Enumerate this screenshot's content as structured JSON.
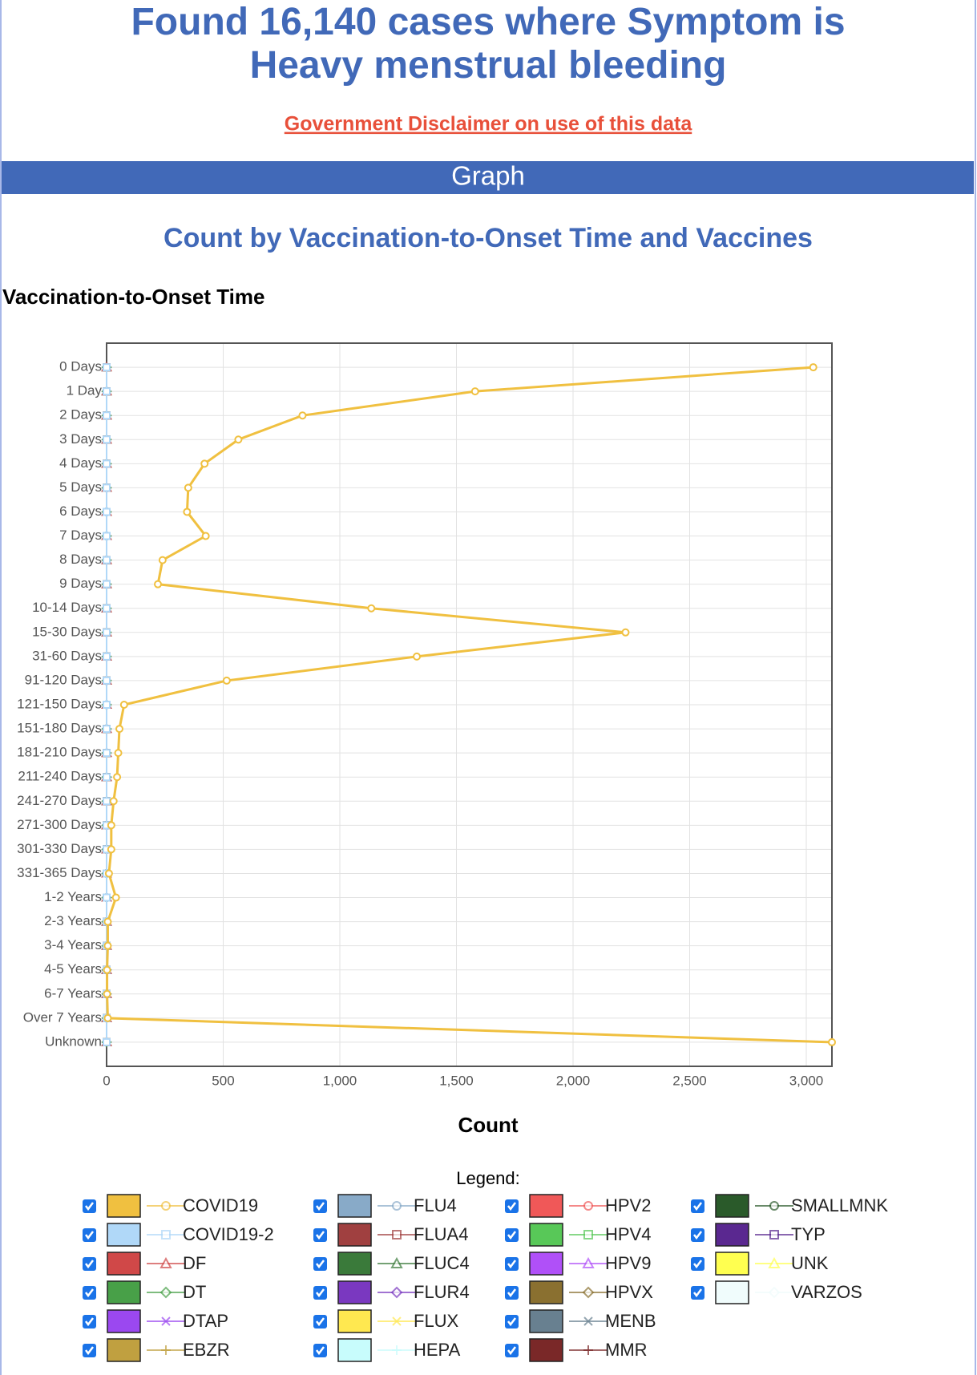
{
  "page": {
    "title": "Found 16,140 cases where Symptom is Heavy menstrual bleeding",
    "disclaimer": "Government Disclaimer on use of this data",
    "section": "Graph"
  },
  "chart_data": {
    "type": "line",
    "orientation": "horizontal",
    "title": "Count by Vaccination-to-Onset Time and Vaccines",
    "y_label": "Vaccination-to-Onset Time",
    "x_label": "Count",
    "legend_title": "Legend:",
    "categories": [
      "0 Days",
      "1 Day",
      "2 Days",
      "3 Days",
      "4 Days",
      "5 Days",
      "6 Days",
      "7 Days",
      "8 Days",
      "9 Days",
      "10-14 Days",
      "15-30 Days",
      "31-60 Days",
      "91-120 Days",
      "121-150 Days",
      "151-180 Days",
      "181-210 Days",
      "211-240 Days",
      "241-270 Days",
      "271-300 Days",
      "301-330 Days",
      "331-365 Days",
      "1-2 Years",
      "2-3 Years",
      "3-4 Years",
      "4-5 Years",
      "6-7 Years",
      "Over 7 Years",
      "Unknown"
    ],
    "xlim": [
      0,
      3110
    ],
    "xticks": [
      0,
      500,
      {
        "value": 1000,
        "label": "1,000"
      },
      {
        "value": 1500,
        "label": "1,500"
      },
      {
        "value": 2000,
        "label": "2,000"
      },
      {
        "value": 2500,
        "label": "2,500"
      },
      {
        "value": 3000,
        "label": "3,000"
      }
    ],
    "grid": true,
    "series": [
      {
        "name": "COVID19",
        "color": "#f0c040",
        "marker": "circle",
        "values": [
          3030,
          1580,
          840,
          565,
          420,
          350,
          345,
          425,
          240,
          220,
          1135,
          2225,
          1330,
          515,
          75,
          55,
          50,
          45,
          30,
          20,
          20,
          10,
          40,
          5,
          5,
          2,
          2,
          5,
          3110
        ]
      },
      {
        "name": "COVID19-2",
        "color": "#b0d8f8",
        "marker": "square",
        "values": [
          0,
          0,
          0,
          0,
          0,
          0,
          0,
          0,
          0,
          0,
          0,
          0,
          0,
          0,
          0,
          0,
          0,
          0,
          0,
          0,
          0,
          0,
          0,
          0,
          0,
          0,
          0,
          0,
          0
        ]
      },
      {
        "name": "DF",
        "color": "#d04848",
        "marker": "triangle",
        "values": [
          0,
          0,
          0,
          0,
          0,
          0,
          0,
          0,
          0,
          0,
          0,
          0,
          0,
          0,
          0,
          0,
          0,
          0,
          0,
          0,
          0,
          0,
          0,
          0,
          0,
          0,
          0,
          0,
          0
        ]
      },
      {
        "name": "DT",
        "color": "#48a048",
        "marker": "diamond",
        "values": [
          0,
          0,
          0,
          0,
          0,
          0,
          0,
          0,
          0,
          0,
          0,
          0,
          0,
          0,
          0,
          0,
          0,
          0,
          0,
          0,
          0,
          0,
          0,
          0,
          0,
          0,
          0,
          0,
          0
        ]
      },
      {
        "name": "DTAP",
        "color": "#9b48f0",
        "marker": "cross",
        "values": [
          0,
          0,
          0,
          0,
          0,
          0,
          0,
          0,
          0,
          0,
          0,
          0,
          0,
          0,
          0,
          0,
          0,
          0,
          0,
          0,
          0,
          0,
          0,
          0,
          0,
          0,
          0,
          0,
          0
        ]
      },
      {
        "name": "EBZR",
        "color": "#c0a040",
        "marker": "plus",
        "values": [
          0,
          0,
          0,
          0,
          0,
          0,
          0,
          0,
          0,
          0,
          0,
          0,
          0,
          0,
          0,
          0,
          0,
          0,
          0,
          0,
          0,
          0,
          0,
          0,
          0,
          0,
          0,
          0,
          0
        ]
      },
      {
        "name": "FLU4",
        "color": "#88aac8",
        "marker": "circle",
        "values": [
          0,
          0,
          0,
          0,
          0,
          0,
          0,
          0,
          0,
          0,
          0,
          0,
          0,
          0,
          0,
          0,
          0,
          0,
          0,
          0,
          0,
          0,
          0,
          0,
          0,
          0,
          0,
          0,
          0
        ]
      },
      {
        "name": "FLUA4",
        "color": "#a04040",
        "marker": "square",
        "values": [
          0,
          0,
          0,
          0,
          0,
          0,
          0,
          0,
          0,
          0,
          0,
          0,
          0,
          0,
          0,
          0,
          0,
          0,
          0,
          0,
          0,
          0,
          0,
          0,
          0,
          0,
          0,
          0,
          0
        ]
      },
      {
        "name": "FLUC4",
        "color": "#3a7a3a",
        "marker": "triangle",
        "values": [
          0,
          0,
          0,
          0,
          0,
          0,
          0,
          0,
          0,
          0,
          0,
          0,
          0,
          0,
          0,
          0,
          0,
          0,
          0,
          0,
          0,
          0,
          0,
          0,
          0,
          0,
          0,
          0,
          0
        ]
      },
      {
        "name": "FLUR4",
        "color": "#7a38c0",
        "marker": "diamond",
        "values": [
          0,
          0,
          0,
          0,
          0,
          0,
          0,
          0,
          0,
          0,
          0,
          0,
          0,
          0,
          0,
          0,
          0,
          0,
          0,
          0,
          0,
          0,
          0,
          0,
          0,
          0,
          0,
          0,
          0
        ]
      },
      {
        "name": "FLUX",
        "color": "#ffe850",
        "marker": "cross",
        "values": [
          0,
          0,
          0,
          0,
          0,
          0,
          0,
          0,
          0,
          0,
          0,
          0,
          0,
          0,
          0,
          0,
          0,
          0,
          0,
          0,
          0,
          0,
          0,
          0,
          0,
          0,
          0,
          0,
          0
        ]
      },
      {
        "name": "HEPA",
        "color": "#c8fcfc",
        "marker": "plus",
        "values": [
          0,
          0,
          0,
          0,
          0,
          0,
          0,
          0,
          0,
          0,
          0,
          0,
          0,
          0,
          0,
          0,
          0,
          0,
          0,
          0,
          0,
          0,
          0,
          0,
          0,
          0,
          0,
          0,
          0
        ]
      },
      {
        "name": "HPV2",
        "color": "#f05858",
        "marker": "circle",
        "values": [
          0,
          0,
          0,
          0,
          0,
          0,
          0,
          0,
          0,
          0,
          0,
          0,
          0,
          0,
          0,
          0,
          0,
          0,
          0,
          0,
          0,
          0,
          0,
          0,
          0,
          0,
          0,
          0,
          0
        ]
      },
      {
        "name": "HPV4",
        "color": "#58c858",
        "marker": "square",
        "values": [
          0,
          0,
          0,
          0,
          0,
          0,
          0,
          0,
          0,
          0,
          0,
          0,
          0,
          0,
          0,
          0,
          0,
          0,
          0,
          0,
          0,
          0,
          0,
          0,
          0,
          0,
          0,
          0,
          0
        ]
      },
      {
        "name": "HPV9",
        "color": "#b050f8",
        "marker": "triangle",
        "values": [
          0,
          0,
          0,
          0,
          0,
          0,
          0,
          0,
          0,
          0,
          0,
          0,
          0,
          0,
          0,
          0,
          0,
          0,
          0,
          0,
          0,
          0,
          0,
          0,
          0,
          0,
          0,
          0,
          0
        ]
      },
      {
        "name": "HPVX",
        "color": "#8a7030",
        "marker": "diamond",
        "values": [
          0,
          0,
          0,
          0,
          0,
          0,
          0,
          0,
          0,
          0,
          0,
          0,
          0,
          0,
          0,
          0,
          0,
          0,
          0,
          0,
          0,
          0,
          0,
          0,
          0,
          0,
          0,
          0,
          0
        ]
      },
      {
        "name": "MENB",
        "color": "#688090",
        "marker": "cross",
        "values": [
          0,
          0,
          0,
          0,
          0,
          0,
          0,
          0,
          0,
          0,
          0,
          0,
          0,
          0,
          0,
          0,
          0,
          0,
          0,
          0,
          0,
          0,
          0,
          0,
          0,
          0,
          0,
          0,
          0
        ]
      },
      {
        "name": "MMR",
        "color": "#7a2828",
        "marker": "plus",
        "values": [
          0,
          0,
          0,
          0,
          0,
          0,
          0,
          0,
          0,
          0,
          0,
          0,
          0,
          0,
          0,
          0,
          0,
          0,
          0,
          0,
          0,
          0,
          0,
          0,
          0,
          0,
          0,
          0,
          0
        ]
      },
      {
        "name": "SMALLMNK",
        "color": "#2a5a2a",
        "marker": "circle",
        "values": [
          0,
          0,
          0,
          0,
          0,
          0,
          0,
          0,
          0,
          0,
          0,
          0,
          0,
          0,
          0,
          0,
          0,
          0,
          0,
          0,
          0,
          0,
          0,
          0,
          0,
          0,
          0,
          0,
          0
        ]
      },
      {
        "name": "TYP",
        "color": "#5a2890",
        "marker": "square",
        "values": [
          0,
          0,
          0,
          0,
          0,
          0,
          0,
          0,
          0,
          0,
          0,
          0,
          0,
          0,
          0,
          0,
          0,
          0,
          0,
          0,
          0,
          0,
          0,
          0,
          0,
          0,
          0,
          0,
          0
        ]
      },
      {
        "name": "UNK",
        "color": "#ffff50",
        "marker": "triangle",
        "values": [
          0,
          0,
          0,
          0,
          0,
          0,
          0,
          0,
          0,
          0,
          0,
          0,
          0,
          0,
          0,
          0,
          0,
          0,
          0,
          0,
          0,
          0,
          0,
          0,
          0,
          0,
          0,
          0,
          0
        ]
      },
      {
        "name": "VARZOS",
        "color": "#f0fcfc",
        "marker": "diamond",
        "values": [
          0,
          0,
          0,
          0,
          0,
          0,
          0,
          0,
          0,
          0,
          0,
          0,
          0,
          0,
          0,
          0,
          0,
          0,
          0,
          0,
          0,
          0,
          0,
          0,
          0,
          0,
          0,
          0,
          0
        ]
      }
    ]
  }
}
